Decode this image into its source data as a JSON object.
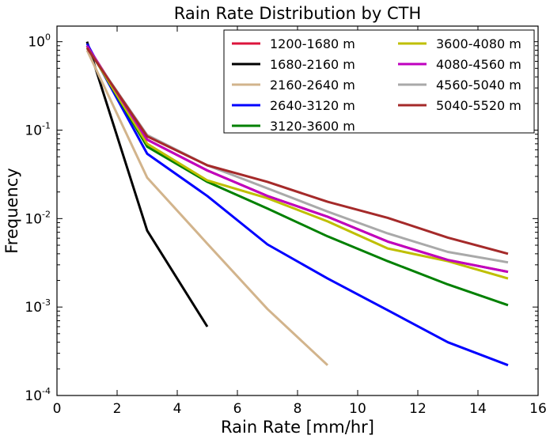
{
  "chart_data": {
    "type": "line",
    "title": "Rain Rate Distribution by CTH",
    "xlabel": "Rain Rate [mm/hr]",
    "ylabel": "Frequency",
    "xlim": [
      0,
      16
    ],
    "ylim": [
      0.0001,
      1.5
    ],
    "yscale": "log",
    "grid": false,
    "legend_position": "top-right",
    "x_ticks": [
      0,
      2,
      4,
      6,
      8,
      10,
      12,
      14,
      16
    ],
    "y_ticks": [
      {
        "value": 0.0001,
        "base": "10",
        "exp": "-4"
      },
      {
        "value": 0.001,
        "base": "10",
        "exp": "-3"
      },
      {
        "value": 0.01,
        "base": "10",
        "exp": "-2"
      },
      {
        "value": 0.1,
        "base": "10",
        "exp": "-1"
      },
      {
        "value": 1,
        "base": "10",
        "exp": "0"
      }
    ],
    "series": [
      {
        "name": "1200-1680 m",
        "color": "#dc143c",
        "x": [
          1,
          3,
          5,
          7,
          9,
          11,
          13,
          15
        ],
        "y": [
          0.9,
          0.078,
          0.035,
          0.018,
          0.0105,
          0.0055,
          0.0034,
          0.0025
        ]
      },
      {
        "name": "1680-2160 m",
        "color": "#000000",
        "x": [
          1,
          3,
          5
        ],
        "y": [
          1.0,
          0.0073,
          0.0006
        ]
      },
      {
        "name": "2160-2640 m",
        "color": "#d2b48c",
        "x": [
          1,
          3,
          5,
          7,
          9
        ],
        "y": [
          0.8,
          0.029,
          0.0052,
          0.00095,
          0.00022
        ]
      },
      {
        "name": "2640-3120 m",
        "color": "#0000ff",
        "x": [
          1,
          3,
          5,
          7,
          9,
          11,
          13,
          15
        ],
        "y": [
          0.95,
          0.054,
          0.018,
          0.0051,
          0.0021,
          0.00092,
          0.0004,
          0.00022
        ]
      },
      {
        "name": "3120-3600 m",
        "color": "#008000",
        "x": [
          1,
          3,
          5,
          7,
          9,
          11,
          13,
          15
        ],
        "y": [
          0.9,
          0.065,
          0.026,
          0.013,
          0.0063,
          0.0033,
          0.0018,
          0.00105
        ]
      },
      {
        "name": "3600-4080 m",
        "color": "#bfbf00",
        "x": [
          1,
          3,
          5,
          7,
          9,
          11,
          13,
          15
        ],
        "y": [
          0.88,
          0.07,
          0.027,
          0.017,
          0.0093,
          0.0046,
          0.0033,
          0.0021
        ]
      },
      {
        "name": "4080-4560 m",
        "color": "#bf00bf",
        "x": [
          1,
          3,
          5,
          7,
          9,
          11,
          13,
          15
        ],
        "y": [
          0.9,
          0.078,
          0.035,
          0.018,
          0.0105,
          0.0055,
          0.0034,
          0.0025
        ]
      },
      {
        "name": "4560-5040 m",
        "color": "#a9a9a9",
        "x": [
          1,
          3,
          5,
          7,
          9,
          11,
          13,
          15
        ],
        "y": [
          0.85,
          0.088,
          0.04,
          0.022,
          0.012,
          0.0068,
          0.0042,
          0.0032
        ]
      },
      {
        "name": "5040-5520 m",
        "color": "#a52a2a",
        "x": [
          1,
          3,
          5,
          7,
          9,
          11,
          13,
          15
        ],
        "y": [
          0.85,
          0.085,
          0.04,
          0.026,
          0.0155,
          0.0102,
          0.0061,
          0.004
        ]
      }
    ]
  }
}
